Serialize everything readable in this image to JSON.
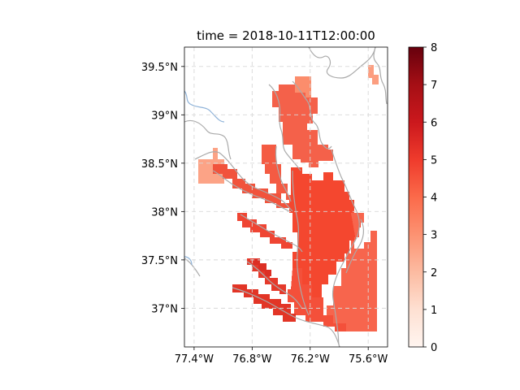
{
  "figure": {
    "title": "time = 2018-10-11T12:00:00"
  },
  "map": {
    "lat_ticks": [
      {
        "value": 39.5,
        "label": "39.5°N"
      },
      {
        "value": 39.0,
        "label": "39°N"
      },
      {
        "value": 38.5,
        "label": "38.5°N"
      },
      {
        "value": 38.0,
        "label": "38°N"
      },
      {
        "value": 37.5,
        "label": "37.5°N"
      },
      {
        "value": 37.0,
        "label": "37°N"
      }
    ],
    "lon_ticks": [
      {
        "value": -77.4,
        "label": "77.4°W"
      },
      {
        "value": -76.8,
        "label": "76.8°W"
      },
      {
        "value": -76.2,
        "label": "76.2°W"
      },
      {
        "value": -75.6,
        "label": "75.6°W"
      }
    ],
    "lon_range": [
      -77.5,
      -75.4
    ],
    "lat_range": [
      36.6,
      39.7
    ],
    "gridlines": true,
    "coastline_color": "#aaaaaa",
    "river_color": "#8fb3d9"
  },
  "colorbar": {
    "min": 0,
    "max": 8,
    "ticks": [
      {
        "value": 0,
        "label": "0"
      },
      {
        "value": 1,
        "label": "1"
      },
      {
        "value": 2,
        "label": "2"
      },
      {
        "value": 3,
        "label": "3"
      },
      {
        "value": 4,
        "label": "4"
      },
      {
        "value": 5,
        "label": "5"
      },
      {
        "value": 6,
        "label": "6"
      },
      {
        "value": 7,
        "label": "7"
      },
      {
        "value": 8,
        "label": "8"
      }
    ],
    "colormap": "Reds",
    "stops": [
      "#fff5f0",
      "#fee0d2",
      "#fcbba1",
      "#fc9272",
      "#fb6a4a",
      "#ef3b2c",
      "#cb181d",
      "#a50f15",
      "#67000d"
    ]
  }
}
